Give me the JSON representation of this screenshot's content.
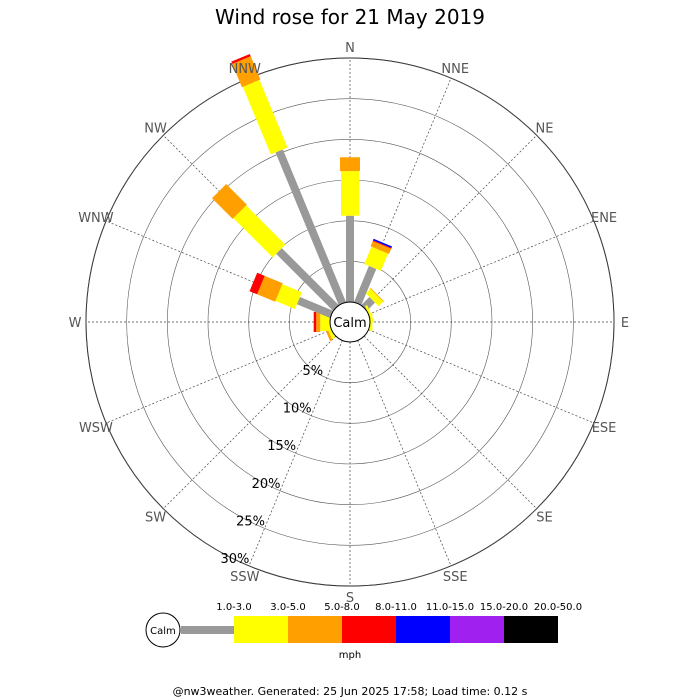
{
  "chart_data": {
    "type": "wind-rose",
    "title": "Wind rose for 21 May 2019",
    "directions": [
      "N",
      "NNE",
      "NE",
      "ENE",
      "E",
      "ESE",
      "SE",
      "SSE",
      "S",
      "SSW",
      "SW",
      "WSW",
      "W",
      "WNW",
      "NW",
      "NNW"
    ],
    "rings": [
      "5%",
      "10%",
      "15%",
      "20%",
      "25%",
      "30%"
    ],
    "rmax": 30,
    "calm_label": "Calm",
    "unit": "mph",
    "speed_bins": [
      {
        "label": "1.0-3.0",
        "color": "#999999"
      },
      {
        "label": "3.0-5.0",
        "color": "#ffff00"
      },
      {
        "label": "5.0-8.0",
        "color": "#ffa000"
      },
      {
        "label": "8.0-11.0",
        "color": "#ff0000"
      },
      {
        "label": "11.0-15.0",
        "color": "#0000ff"
      },
      {
        "label": "15.0-20.0",
        "color": "#a020f0"
      },
      {
        "label": "20.0-50.0",
        "color": "#000000"
      }
    ],
    "series": [
      [
        10.6,
        5.5,
        1.7,
        0,
        0,
        0,
        0
      ],
      [
        4.8,
        2.3,
        0.7,
        0.1,
        0.2,
        0,
        0
      ],
      [
        1.4,
        0.8,
        0.1,
        0,
        0,
        0,
        0
      ],
      [
        0,
        0.3,
        0,
        0,
        0,
        0,
        0
      ],
      [
        0,
        0.3,
        0,
        0,
        0,
        0,
        0
      ],
      [
        0,
        0,
        0,
        0,
        0,
        0,
        0
      ],
      [
        0,
        0,
        0,
        0,
        0,
        0,
        0
      ],
      [
        0,
        0,
        0,
        0,
        0,
        0,
        0
      ],
      [
        0,
        0,
        0,
        0,
        0,
        0,
        0
      ],
      [
        0,
        0,
        0,
        0,
        0,
        0,
        0
      ],
      [
        0,
        0,
        0,
        0,
        0,
        0,
        0
      ],
      [
        0,
        0.4,
        0.3,
        0,
        0,
        0,
        0
      ],
      [
        0,
        1.2,
        0.5,
        0.3,
        0,
        0,
        0
      ],
      [
        4.4,
        2.6,
        2.4,
        1.0,
        0,
        0,
        0
      ],
      [
        9.9,
        6.8,
        3.6,
        0,
        0,
        0,
        0
      ],
      [
        20.3,
        9.0,
        3.1,
        0.3,
        0,
        0,
        0
      ]
    ]
  },
  "footer": "@nw3weather. Generated: 25 Jun 2025 17:58; Load time: 0.12 s"
}
